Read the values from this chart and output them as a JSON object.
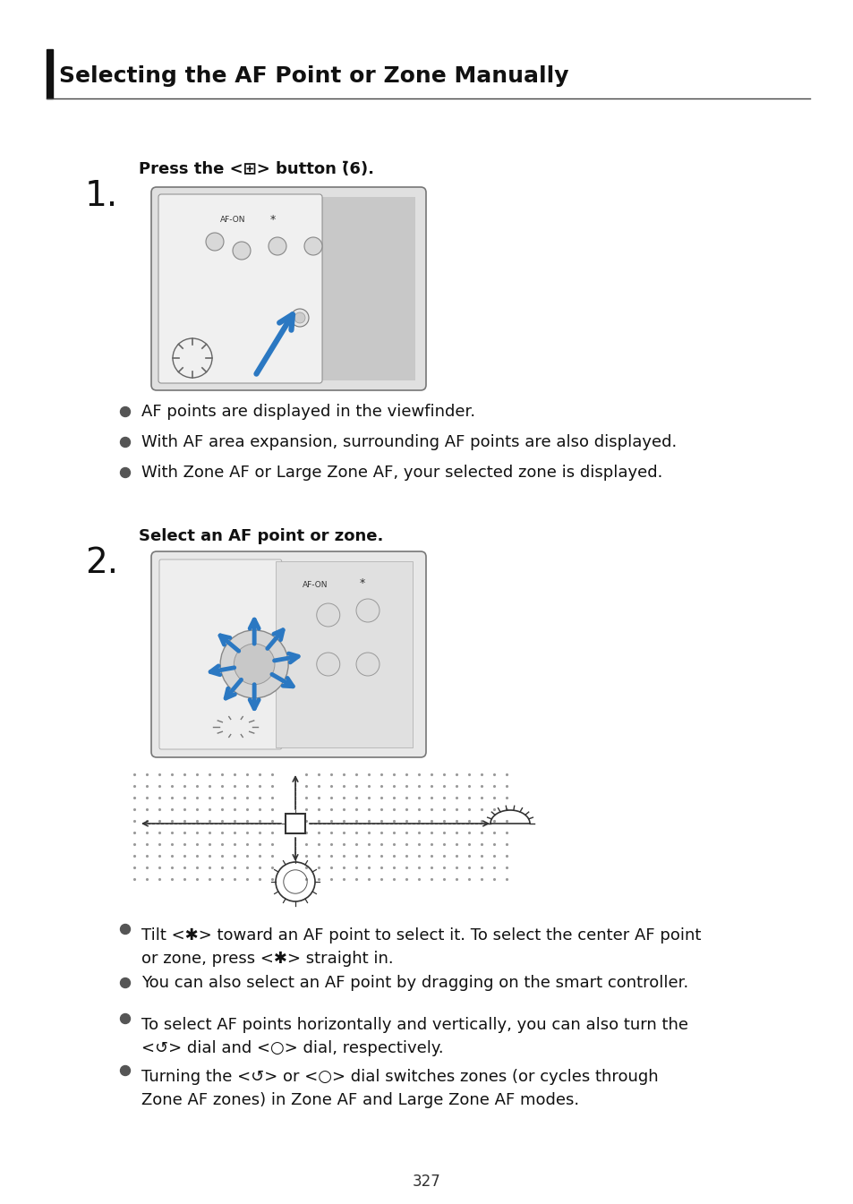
{
  "title": "Selecting the AF Point or Zone Manually",
  "page_number": "327",
  "bg_color": "#ffffff",
  "title_fontsize": 18,
  "body_fontsize": 13,
  "small_fontsize": 11,
  "step_num_fontsize": 28,
  "step1_label": "Press the <⊞> button (̄6).",
  "step1_bullets": [
    "AF points are displayed in the viewfinder.",
    "With AF area expansion, surrounding AF points are also displayed.",
    "With Zone AF or Large Zone AF, your selected zone is displayed."
  ],
  "step2_label": "Select an AF point or zone.",
  "step2_bullet1_line1": "Tilt <✱> toward an AF point to select it. To select the center AF point",
  "step2_bullet1_line2": "or zone, press <✱> straight in.",
  "step2_bullet2": "You can also select an AF point by dragging on the smart controller.",
  "step2_bullet3_line1": "To select AF points horizontally and vertically, you can also turn the",
  "step2_bullet3_line2": "<↺> dial and <○> dial, respectively.",
  "step2_bullet4_line1": "Turning the <↺> or <○> dial switches zones (or cycles through",
  "step2_bullet4_line2": "Zone AF zones) in Zone AF and Large Zone AF modes.",
  "arrow_blue": "#2B78C2",
  "text_color": "#111111",
  "line_color": "#555555",
  "dot_color": "#888888",
  "bullet_color": "#555555"
}
